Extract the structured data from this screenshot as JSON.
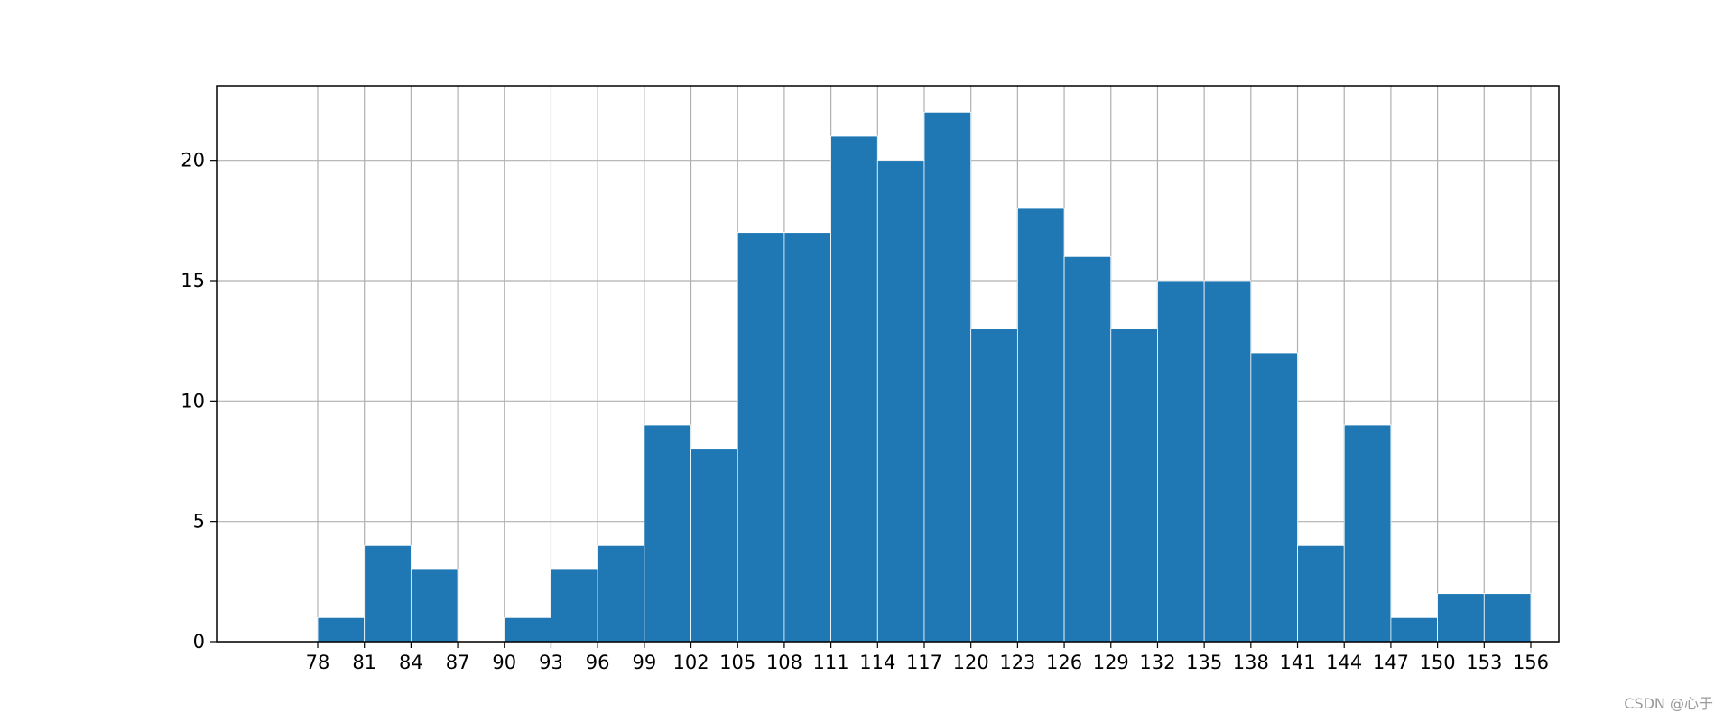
{
  "chart_data": {
    "type": "bar",
    "title": "",
    "xlabel": "",
    "ylabel": "",
    "bin_edges": [
      78,
      81,
      84,
      87,
      90,
      93,
      96,
      99,
      102,
      105,
      108,
      111,
      114,
      117,
      120,
      123,
      126,
      129,
      132,
      135,
      138,
      141,
      144,
      147,
      150,
      153,
      156
    ],
    "counts": [
      1,
      4,
      3,
      0,
      1,
      3,
      4,
      9,
      8,
      17,
      17,
      21,
      20,
      22,
      13,
      18,
      16,
      13,
      15,
      15,
      12,
      4,
      9,
      1,
      2,
      2
    ],
    "xticks": [
      "78",
      "81",
      "84",
      "87",
      "90",
      "93",
      "96",
      "99",
      "102",
      "105",
      "108",
      "111",
      "114",
      "117",
      "120",
      "123",
      "126",
      "129",
      "132",
      "135",
      "138",
      "141",
      "144",
      "147",
      "150",
      "153",
      "156"
    ],
    "yticks": [
      "0",
      "5",
      "10",
      "15",
      "20"
    ],
    "xlim": [
      71.5,
      157.8
    ],
    "ylim": [
      0,
      23.1
    ],
    "grid": true,
    "bar_color": "#1f77b4",
    "edge_color": "#ffffff",
    "grid_color": "#b0b0b0"
  },
  "watermark": "CSDN @心于"
}
